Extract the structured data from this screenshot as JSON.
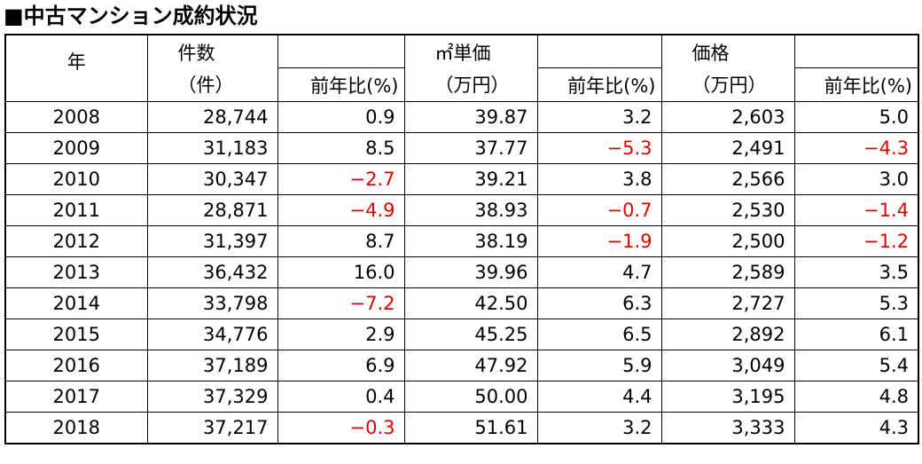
{
  "title": "■中古マンション成約状況",
  "table": {
    "header": {
      "year": "年",
      "groups": [
        {
          "name": "件数",
          "unit": "（件）",
          "change": "前年比(%)"
        },
        {
          "name": "㎡単価",
          "unit": "（万円）",
          "change": "前年比(%)"
        },
        {
          "name": "価格",
          "unit": "（万円）",
          "change": "前年比(%)"
        }
      ]
    },
    "negative_color": "#e00000",
    "rows": [
      [
        "2008",
        "28,744",
        "0.9",
        "39.87",
        "3.2",
        "2,603",
        "5.0"
      ],
      [
        "2009",
        "31,183",
        "8.5",
        "37.77",
        "−5.3",
        "2,491",
        "−4.3"
      ],
      [
        "2010",
        "30,347",
        "−2.7",
        "39.21",
        "3.8",
        "2,566",
        "3.0"
      ],
      [
        "2011",
        "28,871",
        "−4.9",
        "38.93",
        "−0.7",
        "2,530",
        "−1.4"
      ],
      [
        "2012",
        "31,397",
        "8.7",
        "38.19",
        "−1.9",
        "2,500",
        "−1.2"
      ],
      [
        "2013",
        "36,432",
        "16.0",
        "39.96",
        "4.7",
        "2,589",
        "3.5"
      ],
      [
        "2014",
        "33,798",
        "−7.2",
        "42.50",
        "6.3",
        "2,727",
        "5.3"
      ],
      [
        "2015",
        "34,776",
        "2.9",
        "45.25",
        "6.5",
        "2,892",
        "6.1"
      ],
      [
        "2016",
        "37,189",
        "6.9",
        "47.92",
        "5.9",
        "3,049",
        "5.4"
      ],
      [
        "2017",
        "37,329",
        "0.4",
        "50.00",
        "4.4",
        "3,195",
        "4.8"
      ],
      [
        "2018",
        "37,217",
        "−0.3",
        "51.61",
        "3.2",
        "3,333",
        "4.3"
      ]
    ]
  }
}
